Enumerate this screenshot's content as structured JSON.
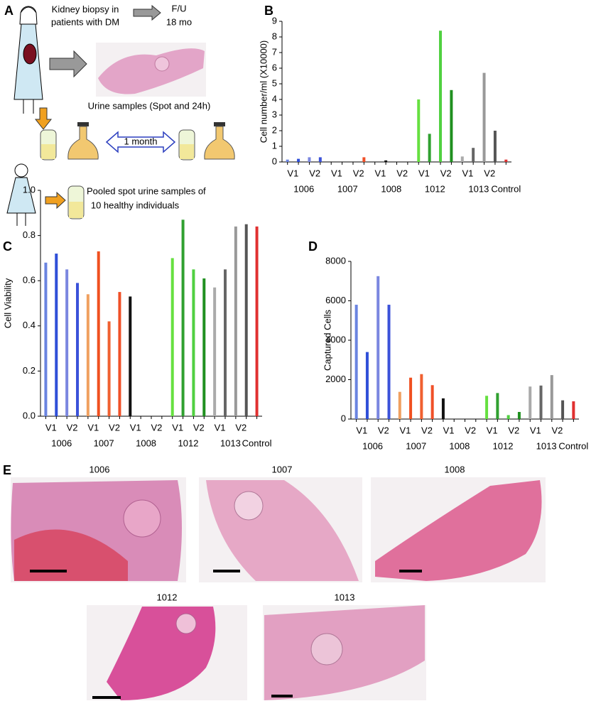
{
  "panel_a": {
    "label": "A",
    "biopsy_text": [
      "Kidney biopsy in",
      "patients with DM"
    ],
    "followup": [
      "F/U",
      "18 mo"
    ],
    "urine_text": "Urine samples (Spot and 24h)",
    "interval": "1 month",
    "pooled_text": [
      "Pooled spot urine samples of",
      "10 healthy individuals"
    ]
  },
  "chart_data": [
    {
      "type": "bar",
      "panel": "B",
      "y_label": "Cell number/ml (X10000)",
      "ylim": [
        0,
        9
      ],
      "yticks": [
        0,
        1,
        2,
        3,
        4,
        5,
        6,
        7,
        8,
        9
      ],
      "visit_labels": [
        "V1",
        "V2"
      ],
      "visit_colors": [
        "#000000",
        "#e02020"
      ],
      "series": [
        {
          "name": "1006",
          "color": "#3a7bd5",
          "bar_colors": [
            "#6a84e0",
            "#2f4fd8",
            "#7b87e0",
            "#3b52d9"
          ],
          "values": [
            0.15,
            0.2,
            0.3,
            0.3
          ]
        },
        {
          "name": "1007",
          "color": "#f0a070",
          "bar_colors": [
            "#f0a060",
            "#f05020",
            "#f06030",
            "#f05028"
          ],
          "values": [
            0,
            0,
            0,
            0.3
          ]
        },
        {
          "name": "1008",
          "color": "#000000",
          "bar_colors": [
            "#111111",
            "#111111",
            "#111111",
            "#111111"
          ],
          "values": [
            0,
            0.1,
            0,
            0
          ]
        },
        {
          "name": "1012",
          "color": "#44dd22",
          "bar_colors": [
            "#66e040",
            "#30a030",
            "#50d040",
            "#209020"
          ],
          "values": [
            4.0,
            1.8,
            8.4,
            4.6
          ]
        },
        {
          "name": "1013",
          "color": "#b8c8dd",
          "bar_colors": [
            "#aaaaaa",
            "#666666",
            "#999999",
            "#555555"
          ],
          "values": [
            0.35,
            0.9,
            5.7,
            2.0
          ]
        },
        {
          "name": "Control",
          "color": "#e02020",
          "bar_colors": [
            "#e03030"
          ],
          "values": [
            0.15
          ]
        }
      ]
    },
    {
      "type": "bar",
      "panel": "C",
      "y_label": "Cell Viability",
      "ylim": [
        0,
        1
      ],
      "yticks": [
        {
          "value": 0,
          "label": "0.0"
        },
        {
          "value": 0.2,
          "label": "0.2"
        },
        {
          "value": 0.4,
          "label": "0.4"
        },
        {
          "value": 0.6,
          "label": "0.6"
        },
        {
          "value": 0.8,
          "label": "0.8"
        },
        {
          "value": 1,
          "label": "1.0"
        }
      ],
      "visit_labels": [
        "V1",
        "V2"
      ],
      "visit_colors": [
        "#000000",
        "#e02020"
      ],
      "series": [
        {
          "name": "1006",
          "color": "#3a7bd5",
          "bar_colors": [
            "#6a84e0",
            "#2f4fd8",
            "#7b87e0",
            "#3b52d9"
          ],
          "values": [
            0.68,
            0.72,
            0.65,
            0.59
          ]
        },
        {
          "name": "1007",
          "color": "#f0a070",
          "bar_colors": [
            "#f0a060",
            "#f05020",
            "#f06030",
            "#f05028"
          ],
          "values": [
            0.54,
            0.73,
            0.42,
            0.55
          ]
        },
        {
          "name": "1008",
          "color": "#000000",
          "bar_colors": [
            "#111111",
            "#111111",
            "#111111",
            "#111111"
          ],
          "values": [
            0.53,
            0,
            0,
            0
          ]
        },
        {
          "name": "1012",
          "color": "#44dd22",
          "bar_colors": [
            "#66e040",
            "#30a030",
            "#50d040",
            "#209020"
          ],
          "values": [
            0.7,
            0.87,
            0.65,
            0.61
          ]
        },
        {
          "name": "1013",
          "color": "#b8c8dd",
          "bar_colors": [
            "#aaaaaa",
            "#666666",
            "#999999",
            "#555555"
          ],
          "values": [
            0.57,
            0.65,
            0.84,
            0.85
          ]
        },
        {
          "name": "Control",
          "color": "#e02020",
          "bar_colors": [
            "#e03030"
          ],
          "values": [
            0.84
          ]
        }
      ]
    },
    {
      "type": "bar",
      "panel": "D",
      "y_label": "Captured Cells",
      "ylim": [
        0,
        8000
      ],
      "yticks": [
        0,
        2000,
        4000,
        6000,
        8000
      ],
      "visit_labels": [
        "V1",
        "V2"
      ],
      "visit_colors": [
        "#000000",
        "#e02020"
      ],
      "series": [
        {
          "name": "1006",
          "color": "#3a7bd5",
          "bar_colors": [
            "#6a84e0",
            "#2f4fd8",
            "#7b87e0",
            "#3b52d9"
          ],
          "values": [
            5800,
            3400,
            7250,
            5800
          ]
        },
        {
          "name": "1007",
          "color": "#f0a070",
          "bar_colors": [
            "#f0a060",
            "#f05020",
            "#f06030",
            "#f05028"
          ],
          "values": [
            1380,
            2100,
            2280,
            1720
          ]
        },
        {
          "name": "1008",
          "color": "#000000",
          "bar_colors": [
            "#111111",
            "#111111",
            "#111111",
            "#111111"
          ],
          "values": [
            1050,
            0,
            0,
            0
          ]
        },
        {
          "name": "1012",
          "color": "#44dd22",
          "bar_colors": [
            "#66e040",
            "#30a030",
            "#50d040",
            "#209020"
          ],
          "values": [
            1180,
            1320,
            200,
            360
          ]
        },
        {
          "name": "1013",
          "color": "#b8c8dd",
          "bar_colors": [
            "#aaaaaa",
            "#666666",
            "#999999",
            "#555555"
          ],
          "values": [
            1650,
            1700,
            2230,
            950
          ]
        },
        {
          "name": "Control",
          "color": "#e02020",
          "bar_colors": [
            "#e03030"
          ],
          "values": [
            900
          ]
        }
      ]
    }
  ],
  "panel_e": {
    "label": "E",
    "samples": [
      "1006",
      "1007",
      "1008",
      "1012",
      "1013"
    ]
  }
}
